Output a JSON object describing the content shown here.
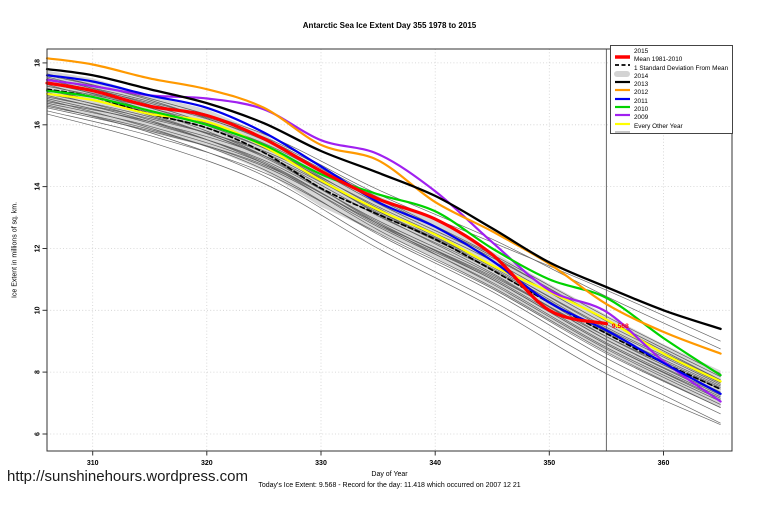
{
  "title": "Antarctic Sea Ice Extent Day 355 1978 to 2015",
  "footer": {
    "url": "http://sunshinehours.wordpress.com",
    "caption": "Today's Ice Extent: 9.568  - Record for the day: 11.418 which occurred on 2007 12 21"
  },
  "chart_data": {
    "type": "line",
    "title": "Antarctic Sea Ice Extent Day 355 1978 to 2015",
    "xlabel": "Day of Year",
    "ylabel": "Ice Extent in millions of sq. km.",
    "xlim": [
      306,
      366
    ],
    "ylim": [
      5.45,
      18.45
    ],
    "xticks": [
      310,
      320,
      330,
      340,
      350,
      360
    ],
    "yticks": [
      6,
      8,
      10,
      12,
      14,
      16,
      18
    ],
    "grid": true,
    "legend_position": "top-right",
    "x": [
      306,
      310,
      315,
      320,
      325,
      330,
      335,
      340,
      345,
      350,
      355,
      360,
      365
    ],
    "band": {
      "name": "1 Standard Deviation From Mean",
      "color": "#D6D6D6",
      "upper": [
        17.75,
        17.5,
        16.95,
        16.5,
        15.7,
        14.55,
        13.7,
        12.9,
        11.9,
        10.85,
        9.85,
        8.9,
        8.05
      ],
      "lower": [
        16.55,
        16.3,
        15.75,
        15.3,
        14.5,
        13.35,
        12.5,
        11.7,
        10.7,
        9.65,
        8.65,
        7.7,
        6.85
      ]
    },
    "series": [
      {
        "name": "Mean 1981-2010",
        "color": "#000000",
        "width": 1.7,
        "dash": "4.5 3",
        "values": [
          17.15,
          16.9,
          16.35,
          15.9,
          15.1,
          13.95,
          13.1,
          12.3,
          11.3,
          10.25,
          9.25,
          8.3,
          7.45
        ]
      },
      {
        "name": "2009",
        "color": "#FFFF00",
        "width": 2.2,
        "values": [
          17.0,
          16.8,
          16.35,
          16.1,
          15.3,
          14.2,
          13.25,
          12.45,
          11.45,
          10.6,
          9.7,
          8.6,
          7.7
        ]
      },
      {
        "name": "2010",
        "color": "#A020F0",
        "width": 2.2,
        "values": [
          17.45,
          17.25,
          16.95,
          16.85,
          16.5,
          15.5,
          15.05,
          13.85,
          12.2,
          10.65,
          9.95,
          8.35,
          7.05
        ]
      },
      {
        "name": "2011",
        "color": "#00D300",
        "width": 2.2,
        "values": [
          17.1,
          16.9,
          16.45,
          16.0,
          15.35,
          14.4,
          13.75,
          13.2,
          12.0,
          11.0,
          10.4,
          9.1,
          7.9
        ]
      },
      {
        "name": "2012",
        "color": "#0000EE",
        "width": 2.2,
        "values": [
          17.6,
          17.4,
          16.95,
          16.55,
          15.75,
          14.65,
          13.5,
          12.7,
          11.6,
          10.25,
          9.35,
          8.3,
          7.3
        ]
      },
      {
        "name": "2013",
        "color": "#FF9900",
        "width": 2.2,
        "values": [
          18.15,
          17.95,
          17.5,
          17.15,
          16.55,
          15.35,
          14.85,
          13.5,
          12.55,
          11.5,
          10.2,
          9.3,
          8.6
        ]
      },
      {
        "name": "2014",
        "color": "#000000",
        "width": 2.3,
        "values": [
          17.8,
          17.6,
          17.15,
          16.7,
          16.05,
          15.15,
          14.45,
          13.7,
          12.65,
          11.55,
          10.75,
          10.0,
          9.4
        ]
      },
      {
        "name": "2015",
        "color": "#FF0000",
        "width": 3.2,
        "values": [
          17.35,
          17.1,
          16.6,
          16.3,
          15.55,
          14.5,
          13.6,
          12.95,
          11.8,
          10.0,
          9.568,
          null,
          null
        ]
      }
    ],
    "gray_name": "Every Other Year",
    "gray_color": "#4a4a4a",
    "gray_x": [
      306,
      315,
      325,
      335,
      345,
      355,
      365
    ],
    "gray_lines": [
      [
        17.65,
        16.8,
        15.5,
        13.6,
        11.75,
        9.65,
        7.75
      ],
      [
        17.55,
        16.65,
        15.3,
        13.1,
        11.2,
        9.05,
        7.25
      ],
      [
        17.45,
        16.7,
        15.55,
        13.65,
        11.8,
        9.8,
        7.95
      ],
      [
        17.4,
        16.45,
        15.0,
        12.8,
        10.85,
        8.75,
        6.95
      ],
      [
        17.35,
        16.55,
        15.25,
        13.2,
        11.4,
        9.3,
        7.55
      ],
      [
        17.3,
        16.35,
        14.95,
        12.85,
        11.0,
        8.9,
        7.15
      ],
      [
        17.25,
        16.55,
        15.4,
        13.45,
        11.7,
        9.7,
        7.85
      ],
      [
        17.15,
        16.3,
        15.0,
        13.05,
        11.3,
        9.15,
        7.35
      ],
      [
        17.1,
        16.4,
        15.25,
        13.3,
        11.45,
        9.45,
        7.65
      ],
      [
        17.05,
        16.15,
        14.75,
        12.6,
        10.75,
        8.65,
        6.85
      ],
      [
        17.0,
        16.25,
        15.1,
        13.15,
        11.35,
        9.25,
        7.5
      ],
      [
        16.95,
        16.1,
        14.8,
        12.75,
        11.0,
        8.9,
        7.1
      ],
      [
        16.9,
        16.2,
        15.15,
        13.35,
        11.6,
        9.55,
        7.75
      ],
      [
        16.85,
        16.05,
        14.85,
        12.9,
        11.15,
        9.05,
        7.3
      ],
      [
        16.8,
        15.9,
        14.55,
        12.45,
        10.6,
        8.45,
        6.65
      ],
      [
        16.75,
        16.1,
        15.0,
        13.2,
        11.45,
        9.4,
        7.6
      ],
      [
        16.7,
        15.95,
        14.75,
        12.8,
        11.05,
        8.95,
        7.2
      ],
      [
        16.65,
        15.75,
        14.35,
        12.2,
        10.3,
        8.2,
        6.35
      ],
      [
        16.6,
        15.85,
        14.65,
        12.7,
        10.9,
        8.8,
        7.05
      ],
      [
        16.55,
        15.8,
        14.7,
        12.8,
        11.1,
        9.15,
        7.45
      ],
      [
        16.45,
        15.65,
        14.45,
        12.5,
        10.7,
        8.6,
        6.85
      ],
      [
        16.35,
        15.45,
        14.1,
        12.0,
        10.1,
        7.95,
        6.3
      ],
      [
        17.6,
        16.85,
        15.7,
        13.9,
        12.3,
        10.45,
        8.75
      ],
      [
        17.5,
        16.75,
        15.6,
        13.75,
        12.2,
        10.65,
        9.0
      ]
    ],
    "vline": {
      "day": 355,
      "color": "#666666"
    },
    "annotation": {
      "text": "9.568",
      "day": 355.3,
      "value": 9.5,
      "color": "#FF0000"
    },
    "legend": [
      {
        "label": "2015",
        "color": "#FF0000",
        "lw": 3.5
      },
      {
        "label": "Mean 1981-2010",
        "color": "#000000",
        "lw": 1.8,
        "dash": "4 2.5"
      },
      {
        "label": "1 Standard Deviation From Mean",
        "color": "#D3D3D3",
        "band": true
      },
      {
        "label": "2014",
        "color": "#000000",
        "lw": 2.2
      },
      {
        "label": "2013",
        "color": "#FF9900",
        "lw": 2.2
      },
      {
        "label": "2012",
        "color": "#0000EE",
        "lw": 2.2
      },
      {
        "label": "2011",
        "color": "#00D300",
        "lw": 2.2
      },
      {
        "label": "2010",
        "color": "#A020F0",
        "lw": 2.2
      },
      {
        "label": "2009",
        "color": "#FFFF00",
        "lw": 2.2
      },
      {
        "label": "Every Other Year",
        "color": "#808080",
        "lw": 0.9
      }
    ]
  }
}
